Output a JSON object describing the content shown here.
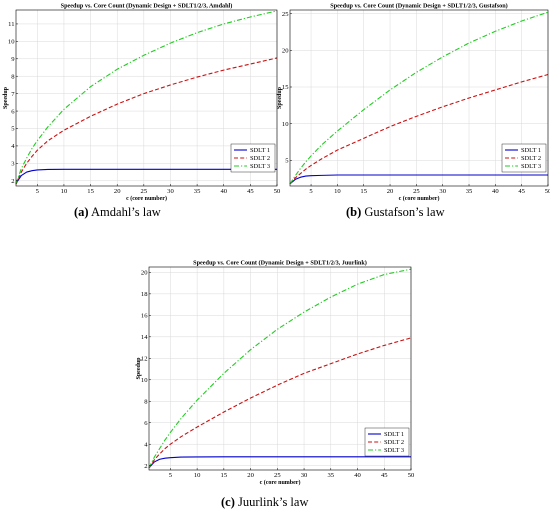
{
  "captions": [
    {
      "letter": "(a)",
      "text": "Amdahl’s law"
    },
    {
      "letter": "(b)",
      "text": "Gustafson’s law"
    },
    {
      "letter": "(c)",
      "text": "Juurlink’s law"
    }
  ],
  "colors": {
    "sdlt1": "#0000cc",
    "sdlt2": "#cc1111",
    "sdlt3": "#22cc22"
  },
  "chart_data": [
    {
      "type": "line",
      "title": "Speedup vs. Core Count (Dynamic Design + SDLT1/2/3, Amdahl)",
      "xlabel": "c (core number)",
      "ylabel": "Speedup",
      "xlim": [
        1,
        50
      ],
      "ylim": [
        1.7,
        11.8
      ],
      "xticks": [
        5,
        10,
        15,
        20,
        25,
        30,
        35,
        40,
        45,
        50
      ],
      "yticks": [
        2,
        3,
        4,
        5,
        6,
        7,
        8,
        9,
        10,
        11
      ],
      "grid": true,
      "legend_position": "lower-right",
      "x": [
        1,
        2,
        3,
        4,
        5,
        7,
        10,
        15,
        20,
        25,
        30,
        35,
        40,
        45,
        50
      ],
      "series": [
        {
          "name": "SDLT 1",
          "style": "solid",
          "values": [
            1.85,
            2.3,
            2.5,
            2.58,
            2.62,
            2.65,
            2.66,
            2.66,
            2.66,
            2.66,
            2.66,
            2.66,
            2.66,
            2.66,
            2.66
          ]
        },
        {
          "name": "SDLT 2",
          "style": "dashed",
          "values": [
            1.8,
            2.5,
            3.0,
            3.4,
            3.75,
            4.3,
            4.9,
            5.7,
            6.4,
            7.0,
            7.5,
            7.95,
            8.35,
            8.7,
            9.05
          ]
        },
        {
          "name": "SDLT 3",
          "style": "dashdot",
          "values": [
            1.85,
            2.7,
            3.3,
            3.85,
            4.3,
            5.1,
            6.1,
            7.4,
            8.4,
            9.2,
            9.9,
            10.5,
            11.0,
            11.4,
            11.75
          ]
        }
      ]
    },
    {
      "type": "line",
      "title": "Speedup vs. Core Count (Dynamic Design + SDLT1/2/3, Gustafson)",
      "xlabel": "c (core number)",
      "ylabel": "Speedup",
      "xlim": [
        1,
        50
      ],
      "ylim": [
        1.5,
        25.5
      ],
      "xticks": [
        5,
        10,
        15,
        20,
        25,
        30,
        35,
        40,
        45,
        50
      ],
      "yticks": [
        5,
        10,
        15,
        20,
        25
      ],
      "grid": true,
      "legend_position": "lower-right",
      "x": [
        1,
        2,
        3,
        4,
        5,
        7,
        10,
        15,
        20,
        25,
        30,
        35,
        40,
        45,
        50
      ],
      "series": [
        {
          "name": "SDLT 1",
          "style": "solid",
          "values": [
            1.8,
            2.4,
            2.7,
            2.85,
            2.9,
            2.95,
            3.0,
            3.0,
            3.0,
            3.0,
            3.0,
            3.0,
            3.0,
            3.0,
            3.0
          ]
        },
        {
          "name": "SDLT 2",
          "style": "dashed",
          "values": [
            1.8,
            2.6,
            3.2,
            3.8,
            4.3,
            5.2,
            6.4,
            8.0,
            9.6,
            11.0,
            12.3,
            13.5,
            14.6,
            15.7,
            16.7
          ]
        },
        {
          "name": "SDLT 3",
          "style": "dashdot",
          "values": [
            1.8,
            2.9,
            3.9,
            4.8,
            5.6,
            7.1,
            9.0,
            11.9,
            14.6,
            17.0,
            19.1,
            21.0,
            22.6,
            24.0,
            25.2
          ]
        }
      ]
    },
    {
      "type": "line",
      "title": "Speedup vs. Core Count (Dynamic Design + SDLT1/2/3, Juurlink)",
      "xlabel": "c (core number)",
      "ylabel": "Speedup",
      "xlim": [
        1,
        50
      ],
      "ylim": [
        1.6,
        20.5
      ],
      "xticks": [
        5,
        10,
        15,
        20,
        25,
        30,
        35,
        40,
        45,
        50
      ],
      "yticks": [
        2,
        4,
        6,
        8,
        10,
        12,
        14,
        16,
        18,
        20
      ],
      "grid": true,
      "legend_position": "lower-right",
      "x": [
        1,
        2,
        3,
        4,
        5,
        7,
        10,
        15,
        20,
        25,
        30,
        35,
        40,
        45,
        50
      ],
      "series": [
        {
          "name": "SDLT 1",
          "style": "solid",
          "values": [
            1.8,
            2.35,
            2.6,
            2.7,
            2.75,
            2.8,
            2.82,
            2.83,
            2.83,
            2.83,
            2.83,
            2.83,
            2.83,
            2.83,
            2.83
          ]
        },
        {
          "name": "SDLT 2",
          "style": "dashed",
          "values": [
            1.8,
            2.55,
            3.1,
            3.6,
            4.0,
            4.7,
            5.6,
            7.0,
            8.3,
            9.5,
            10.6,
            11.5,
            12.4,
            13.2,
            13.9
          ]
        },
        {
          "name": "SDLT 3",
          "style": "dashdot",
          "values": [
            1.8,
            2.8,
            3.6,
            4.4,
            5.1,
            6.4,
            8.1,
            10.6,
            12.8,
            14.7,
            16.3,
            17.7,
            18.9,
            19.8,
            20.3
          ]
        }
      ]
    }
  ]
}
